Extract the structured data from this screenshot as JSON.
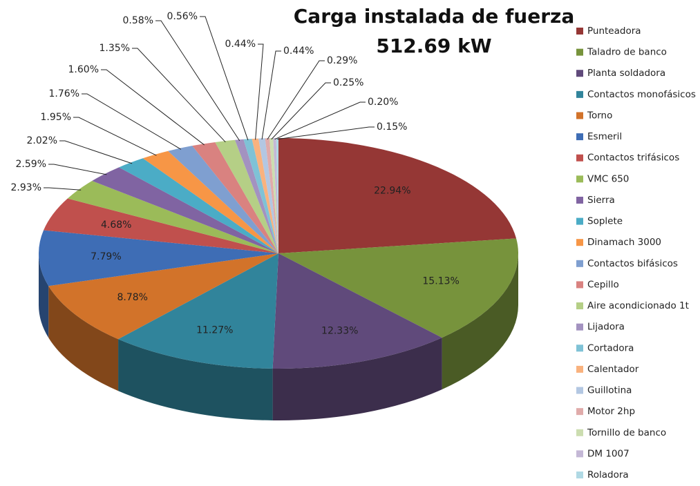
{
  "chart_data": {
    "type": "pie",
    "title": [
      "Carga instalada de fuerza",
      "512.69 kW"
    ],
    "categories": [
      "Punteadora",
      "Taladro de banco",
      "Planta soldadora",
      "Contactos monofásicos",
      "Torno",
      "Esmeril",
      "Contactos trifásicos",
      "VMC 650",
      "Sierra",
      "Soplete",
      "Dinamach 3000",
      "Contactos bifásicos",
      "Cepillo",
      "Aire acondicionado  1t",
      "Lijadora",
      "Cortadora",
      "Calentador",
      "Guillotina",
      "Motor 2hp",
      "Tornillo de banco",
      "DM 1007",
      "Roladora"
    ],
    "values": [
      22.94,
      15.13,
      12.33,
      11.27,
      8.78,
      7.79,
      4.68,
      2.93,
      2.59,
      2.02,
      1.95,
      1.76,
      1.6,
      1.35,
      0.58,
      0.56,
      0.44,
      0.44,
      0.29,
      0.25,
      0.2,
      0.15
    ],
    "value_labels": [
      "22.94%",
      "15.13%",
      "12.33%",
      "11.27%",
      "8.78%",
      "7.79%",
      "4.68%",
      "2.93%",
      "2.59%",
      "2.02%",
      "1.95%",
      "1.76%",
      "1.60%",
      "1.35%",
      "0.58%",
      "0.56%",
      "0.44%",
      "0.44%",
      "0.29%",
      "0.25%",
      "0.20%",
      "0.15%"
    ],
    "colors": [
      "#953735",
      "#77933C",
      "#604A7B",
      "#31849B",
      "#D2732A",
      "#3E6DB5",
      "#C0504D",
      "#9BBB59",
      "#8064A2",
      "#4BACC6",
      "#F79646",
      "#7F9FD0",
      "#D98280",
      "#B5CF86",
      "#A392C0",
      "#7FC2D6",
      "#F9B27E",
      "#B3C7E2",
      "#E0ABAA",
      "#CCDDB0",
      "#C4B8D6",
      "#B0D9E4"
    ],
    "legend": "right"
  }
}
